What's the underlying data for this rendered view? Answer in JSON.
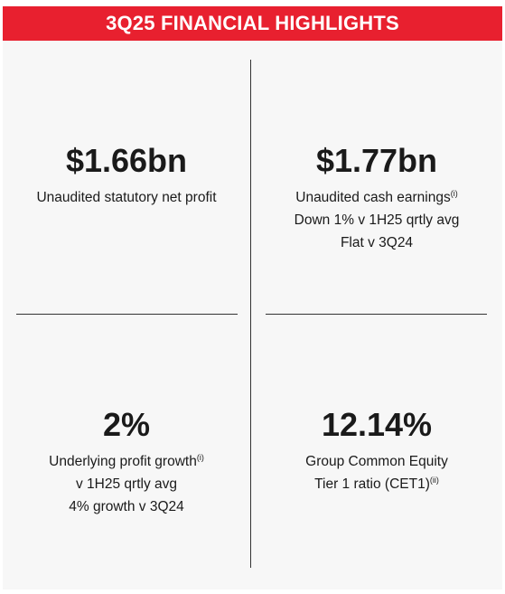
{
  "header": {
    "title": "3Q25 FINANCIAL HIGHLIGHTS"
  },
  "highlights": [
    {
      "value": "$1.66bn",
      "lines": [
        {
          "text": "Unaudited statutory net profit",
          "note": ""
        }
      ]
    },
    {
      "value": "$1.77bn",
      "lines": [
        {
          "text": "Unaudited cash earnings",
          "note": "(i)"
        },
        {
          "text": "Down 1% v 1H25 qrtly avg",
          "note": ""
        },
        {
          "text": "Flat v 3Q24",
          "note": ""
        }
      ]
    },
    {
      "value": "2%",
      "lines": [
        {
          "text": "Underlying profit growth",
          "note": "(i)"
        },
        {
          "text": "v 1H25 qrtly avg",
          "note": ""
        },
        {
          "text": "4% growth v 3Q24",
          "note": ""
        }
      ]
    },
    {
      "value": "12.14%",
      "lines": [
        {
          "text": "Group Common Equity",
          "note": ""
        },
        {
          "text": "Tier 1 ratio (CET1)",
          "note": "(ii)"
        }
      ]
    }
  ],
  "colors": {
    "banner": "#e8202f",
    "background": "#f7f7f7",
    "text": "#1a1a1a"
  }
}
